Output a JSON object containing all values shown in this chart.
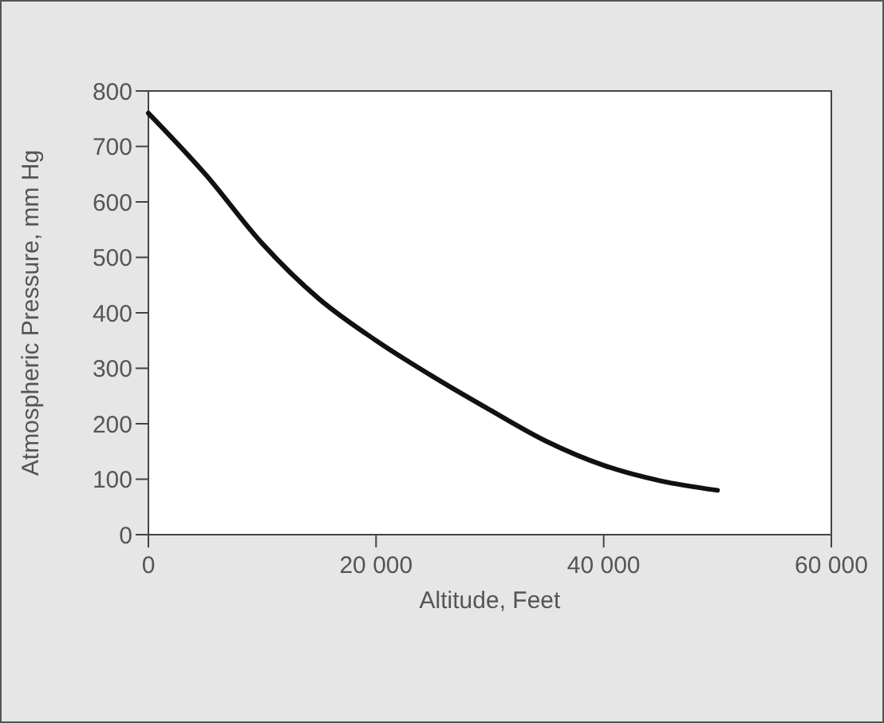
{
  "chart_data": {
    "type": "line",
    "xlabel": "Altitude, Feet",
    "ylabel": "Atmospheric Pressure, mm Hg",
    "x": [
      0,
      5000,
      10000,
      15000,
      20000,
      25000,
      30000,
      35000,
      40000,
      45000,
      50000
    ],
    "series": [
      {
        "color": "#111111",
        "values": [
          760,
          650,
          525,
          425,
          350,
          285,
          225,
          168,
          125,
          97,
          80
        ]
      }
    ],
    "xlim": [
      0,
      60000
    ],
    "ylim": [
      0,
      800
    ],
    "xticks": [
      0,
      {
        "value": 20000,
        "label": "20 000"
      },
      {
        "value": 40000,
        "label": "40 000"
      },
      {
        "value": 60000,
        "label": "60 000"
      }
    ],
    "yticks": [
      0,
      100,
      200,
      300,
      400,
      500,
      600,
      700,
      800
    ],
    "grid": false,
    "marker": "none",
    "line_style": "solid"
  }
}
